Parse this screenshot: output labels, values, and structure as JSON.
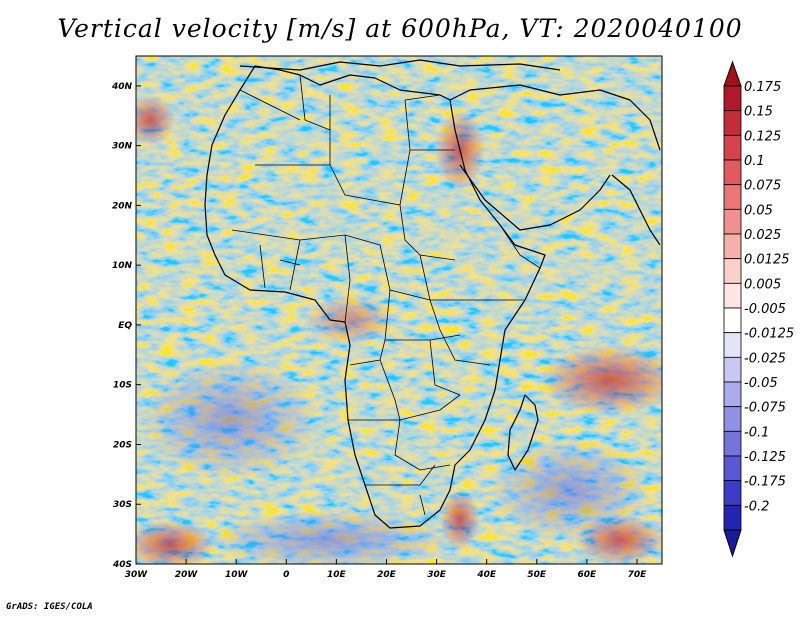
{
  "title": "Vertical velocity [m/s] at 600hPa, VT: 2020040100",
  "credit": "GrADS: IGES/COLA",
  "map": {
    "lon_range": [
      -30,
      75
    ],
    "lat_range": [
      -40,
      45
    ],
    "lat_ticks": [
      {
        "lat": 40,
        "label": "40N"
      },
      {
        "lat": 30,
        "label": "30N"
      },
      {
        "lat": 20,
        "label": "20N"
      },
      {
        "lat": 10,
        "label": "10N"
      },
      {
        "lat": 0,
        "label": "EQ"
      },
      {
        "lat": -10,
        "label": "10S"
      },
      {
        "lat": -20,
        "label": "20S"
      },
      {
        "lat": -30,
        "label": "30S"
      },
      {
        "lat": -40,
        "label": "40S"
      }
    ],
    "lon_ticks": [
      {
        "lon": -30,
        "label": "30W"
      },
      {
        "lon": -20,
        "label": "20W"
      },
      {
        "lon": -10,
        "label": "10W"
      },
      {
        "lon": 0,
        "label": "0"
      },
      {
        "lon": 10,
        "label": "10E"
      },
      {
        "lon": 20,
        "label": "20E"
      },
      {
        "lon": 30,
        "label": "30E"
      },
      {
        "lon": 40,
        "label": "40E"
      },
      {
        "lon": 50,
        "label": "50E"
      },
      {
        "lon": 60,
        "label": "60E"
      },
      {
        "lon": 70,
        "label": "70E"
      }
    ]
  },
  "colorbar": {
    "levels": [
      {
        "label": "0.175",
        "color": "#b2182b"
      },
      {
        "label": "0.15",
        "color": "#c42d37"
      },
      {
        "label": "0.125",
        "color": "#d6424b"
      },
      {
        "label": "0.1",
        "color": "#e05a5e"
      },
      {
        "label": "0.075",
        "color": "#ea7676"
      },
      {
        "label": "0.05",
        "color": "#f09090"
      },
      {
        "label": "0.025",
        "color": "#f6b0ac"
      },
      {
        "label": "0.0125",
        "color": "#fbd0cb"
      },
      {
        "label": "0.005",
        "color": "#fde6e3"
      },
      {
        "label": "-0.005",
        "color": "#ffffff"
      },
      {
        "label": "-0.0125",
        "color": "#e4e4f8"
      },
      {
        "label": "-0.025",
        "color": "#c8c8f2"
      },
      {
        "label": "-0.05",
        "color": "#acacec"
      },
      {
        "label": "-0.075",
        "color": "#9090e4"
      },
      {
        "label": "-0.1",
        "color": "#7474dc"
      },
      {
        "label": "-0.125",
        "color": "#5858d2"
      },
      {
        "label": "-0.175",
        "color": "#3c3cc6"
      },
      {
        "label": "-0.2",
        "color": "#2424b4"
      }
    ],
    "top_arrow_color": "#a50f15",
    "bottom_arrow_color": "#1a1a9e"
  }
}
